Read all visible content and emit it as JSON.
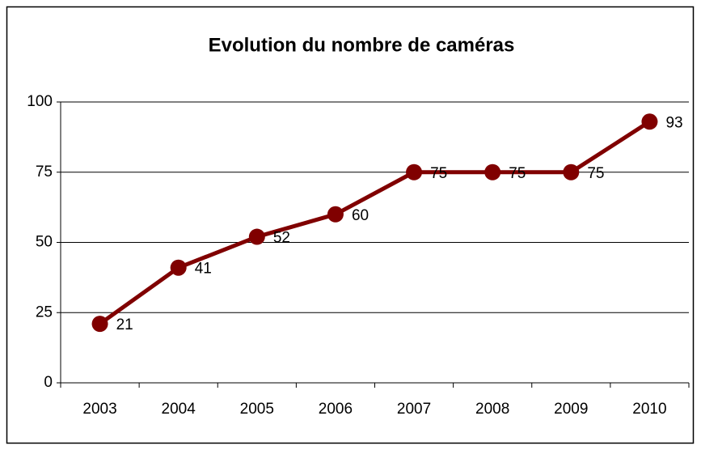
{
  "chart_data": {
    "type": "line",
    "title": "Evolution du nombre de caméras",
    "categories": [
      "2003",
      "2004",
      "2005",
      "2006",
      "2007",
      "2008",
      "2009",
      "2010"
    ],
    "values": [
      21,
      41,
      52,
      60,
      75,
      75,
      75,
      93
    ],
    "color": "#800000",
    "ylim": [
      0,
      100
    ],
    "yticks": [
      0,
      25,
      50,
      75,
      100
    ],
    "grid": true,
    "data_labels": true
  }
}
